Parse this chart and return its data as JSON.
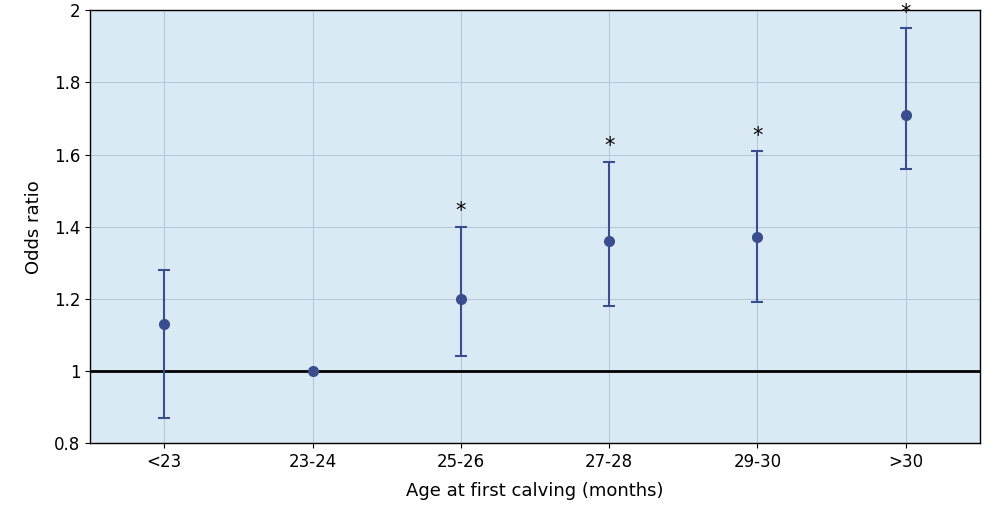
{
  "categories": [
    "<23",
    "23-24",
    "25-26",
    "27-28",
    "29-30",
    ">30"
  ],
  "odds_ratios": [
    1.13,
    1.0,
    1.2,
    1.36,
    1.37,
    1.71
  ],
  "ci_low": [
    0.87,
    1.0,
    1.04,
    1.18,
    1.19,
    1.56
  ],
  "ci_high": [
    1.28,
    1.0,
    1.4,
    1.58,
    1.61,
    1.95
  ],
  "significant": [
    false,
    false,
    true,
    true,
    true,
    true
  ],
  "ylim": [
    0.8,
    2.0
  ],
  "yticks": [
    0.8,
    1.0,
    1.2,
    1.4,
    1.6,
    1.8,
    2.0
  ],
  "ytick_labels": [
    "0.8",
    "1",
    "1.2",
    "1.4",
    "1.6",
    "1.8",
    "2"
  ],
  "xlabel": "Age at first calving (months)",
  "ylabel": "Odds ratio",
  "reference_line": 1.0,
  "figure_facecolor": "#ffffff",
  "plot_background_color": "#daeaf5",
  "point_color": "#3a4d8f",
  "line_color": "#3a4d8f",
  "grid_color": "#b8c8d8",
  "star_color": "#000000",
  "ref_line_color": "#000000",
  "spine_color": "#000000",
  "point_size": 7,
  "capsize": 4,
  "linewidth": 1.5,
  "cap_linewidth": 1.5
}
